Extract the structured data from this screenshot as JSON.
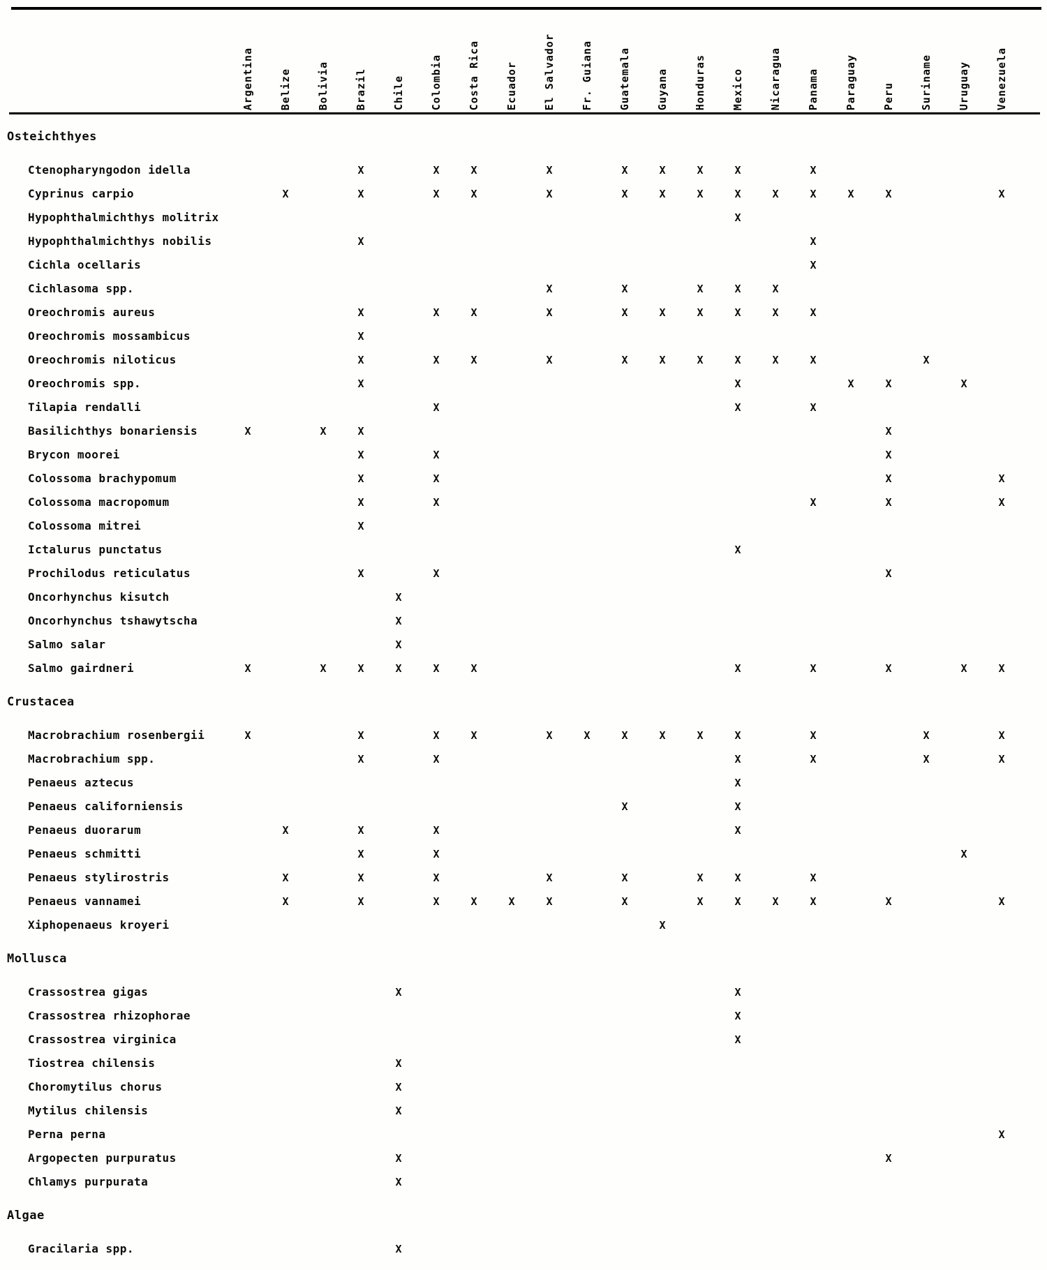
{
  "table": {
    "mark_symbol": "X",
    "columns": [
      "Argentina",
      "Belize",
      "Bolivia",
      "Brazil",
      "Chile",
      "Colombia",
      "Costa Rica",
      "Ecuador",
      "El Salvador",
      "Fr. Guiana",
      "Guatemala",
      "Guyana",
      "Honduras",
      "Mexico",
      "Nicaragua",
      "Panama",
      "Paraguay",
      "Peru",
      "Suriname",
      "Uruguay",
      "Venezuela"
    ],
    "sections": [
      {
        "label": "Osteichthyes",
        "rows": [
          {
            "species": "Ctenopharyngodon idella",
            "marks": [
              "Brazil",
              "Colombia",
              "Costa Rica",
              "El Salvador",
              "Guatemala",
              "Guyana",
              "Honduras",
              "Mexico",
              "Panama"
            ]
          },
          {
            "species": "Cyprinus carpio",
            "marks": [
              "Belize",
              "Brazil",
              "Colombia",
              "Costa Rica",
              "El Salvador",
              "Guatemala",
              "Guyana",
              "Honduras",
              "Mexico",
              "Nicaragua",
              "Panama",
              "Paraguay",
              "Peru",
              "Venezuela"
            ]
          },
          {
            "species": "Hypophthalmichthys molitrix",
            "marks": [
              "Mexico"
            ]
          },
          {
            "species": "Hypophthalmichthys nobilis",
            "marks": [
              "Brazil",
              "Panama"
            ]
          },
          {
            "species": "Cichla ocellaris",
            "marks": [
              "Panama"
            ]
          },
          {
            "species": "Cichlasoma spp.",
            "marks": [
              "El Salvador",
              "Guatemala",
              "Honduras",
              "Mexico",
              "Nicaragua"
            ]
          },
          {
            "species": "Oreochromis aureus",
            "marks": [
              "Brazil",
              "Colombia",
              "Costa Rica",
              "El Salvador",
              "Guatemala",
              "Guyana",
              "Honduras",
              "Mexico",
              "Nicaragua",
              "Panama"
            ]
          },
          {
            "species": "Oreochromis mossambicus",
            "marks": [
              "Brazil"
            ]
          },
          {
            "species": "Oreochromis niloticus",
            "marks": [
              "Brazil",
              "Colombia",
              "Costa Rica",
              "El Salvador",
              "Guatemala",
              "Guyana",
              "Honduras",
              "Mexico",
              "Nicaragua",
              "Panama",
              "Suriname"
            ]
          },
          {
            "species": "Oreochromis spp.",
            "marks": [
              "Brazil",
              "Mexico",
              "Paraguay",
              "Peru",
              "Uruguay"
            ]
          },
          {
            "species": "Tilapia rendalli",
            "marks": [
              "Colombia",
              "Mexico",
              "Panama"
            ]
          },
          {
            "species": "Basilichthys bonariensis",
            "marks": [
              "Argentina",
              "Bolivia",
              "Brazil",
              "Peru"
            ]
          },
          {
            "species": "Brycon moorei",
            "marks": [
              "Brazil",
              "Colombia",
              "Peru"
            ]
          },
          {
            "species": "Colossoma brachypomum",
            "marks": [
              "Brazil",
              "Colombia",
              "Peru",
              "Venezuela"
            ]
          },
          {
            "species": "Colossoma macropomum",
            "marks": [
              "Brazil",
              "Colombia",
              "Panama",
              "Peru",
              "Venezuela"
            ]
          },
          {
            "species": "Colossoma mitrei",
            "marks": [
              "Brazil"
            ]
          },
          {
            "species": "Ictalurus punctatus",
            "marks": [
              "Mexico"
            ]
          },
          {
            "species": "Prochilodus reticulatus",
            "marks": [
              "Brazil",
              "Colombia",
              "Peru"
            ]
          },
          {
            "species": "Oncorhynchus kisutch",
            "marks": [
              "Chile"
            ]
          },
          {
            "species": "Oncorhynchus tshawytscha",
            "marks": [
              "Chile"
            ]
          },
          {
            "species": "Salmo salar",
            "marks": [
              "Chile"
            ]
          },
          {
            "species": "Salmo gairdneri",
            "marks": [
              "Argentina",
              "Bolivia",
              "Brazil",
              "Chile",
              "Colombia",
              "Costa Rica",
              "Mexico",
              "Panama",
              "Peru",
              "Uruguay",
              "Venezuela"
            ]
          }
        ]
      },
      {
        "label": "Crustacea",
        "rows": [
          {
            "species": "Macrobrachium rosenbergii",
            "marks": [
              "Argentina",
              "Brazil",
              "Colombia",
              "Costa Rica",
              "El Salvador",
              "Fr. Guiana",
              "Guatemala",
              "Guyana",
              "Honduras",
              "Mexico",
              "Panama",
              "Suriname",
              "Venezuela"
            ]
          },
          {
            "species": "Macrobrachium spp.",
            "marks": [
              "Brazil",
              "Colombia",
              "Mexico",
              "Panama",
              "Suriname",
              "Venezuela"
            ]
          },
          {
            "species": "Penaeus aztecus",
            "marks": [
              "Mexico"
            ]
          },
          {
            "species": "Penaeus californiensis",
            "marks": [
              "Guatemala",
              "Mexico"
            ]
          },
          {
            "species": "Penaeus duorarum",
            "marks": [
              "Belize",
              "Brazil",
              "Colombia",
              "Mexico"
            ]
          },
          {
            "species": "Penaeus schmitti",
            "marks": [
              "Brazil",
              "Colombia",
              "Uruguay"
            ]
          },
          {
            "species": "Penaeus stylirostris",
            "marks": [
              "Belize",
              "Brazil",
              "Colombia",
              "El Salvador",
              "Guatemala",
              "Honduras",
              "Mexico",
              "Panama"
            ]
          },
          {
            "species": "Penaeus vannamei",
            "marks": [
              "Belize",
              "Brazil",
              "Colombia",
              "Costa Rica",
              "Ecuador",
              "El Salvador",
              "Guatemala",
              "Honduras",
              "Mexico",
              "Nicaragua",
              "Panama",
              "Peru",
              "Venezuela"
            ]
          },
          {
            "species": "Xiphopenaeus kroyeri",
            "marks": [
              "Guyana"
            ]
          }
        ]
      },
      {
        "label": "Mollusca",
        "rows": [
          {
            "species": "Crassostrea gigas",
            "marks": [
              "Chile",
              "Mexico"
            ]
          },
          {
            "species": "Crassostrea rhizophorae",
            "marks": [
              "Mexico"
            ]
          },
          {
            "species": "Crassostrea virginica",
            "marks": [
              "Mexico"
            ]
          },
          {
            "species": "Tiostrea chilensis",
            "marks": [
              "Chile"
            ]
          },
          {
            "species": "Choromytilus chorus",
            "marks": [
              "Chile"
            ]
          },
          {
            "species": "Mytilus chilensis",
            "marks": [
              "Chile"
            ]
          },
          {
            "species": "Perna perna",
            "marks": [
              "Venezuela"
            ]
          },
          {
            "species": "Argopecten purpuratus",
            "marks": [
              "Chile",
              "Peru"
            ]
          },
          {
            "species": "Chlamys purpurata",
            "marks": [
              "Chile"
            ]
          }
        ]
      },
      {
        "label": "Algae",
        "rows": [
          {
            "species": "Gracilaria spp.",
            "marks": [
              "Chile"
            ]
          }
        ]
      }
    ]
  }
}
